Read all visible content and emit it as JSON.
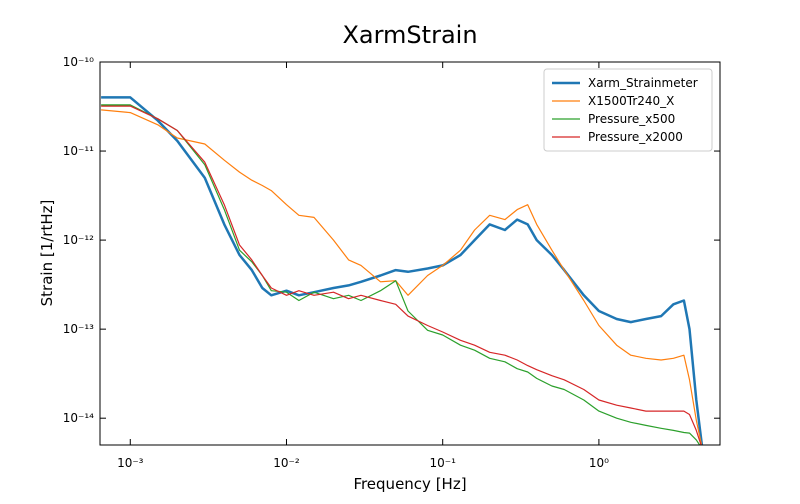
{
  "chart_data": {
    "type": "line",
    "title": "XarmStrain",
    "xlabel": "Frequency [Hz]",
    "ylabel": "Strain [1/rtHz]",
    "xscale": "log",
    "yscale": "log",
    "xlim": [
      0.00064,
      5.96
    ],
    "ylim": [
      5e-15,
      1e-10
    ],
    "xticks": [
      {
        "value": 0.001,
        "label": "10⁻³"
      },
      {
        "value": 0.01,
        "label": "10⁻²"
      },
      {
        "value": 0.1,
        "label": "10⁻¹"
      },
      {
        "value": 1,
        "label": "10⁰"
      }
    ],
    "yticks": [
      {
        "value": 1e-14,
        "label": "10⁻¹⁴"
      },
      {
        "value": 1e-13,
        "label": "10⁻¹³"
      },
      {
        "value": 1e-12,
        "label": "10⁻¹²"
      },
      {
        "value": 1e-11,
        "label": "10⁻¹¹"
      },
      {
        "value": 1e-10,
        "label": "10⁻¹⁰"
      }
    ],
    "legend": "upper right",
    "x": [
      0.00065,
      0.001,
      0.0015,
      0.002,
      0.003,
      0.004,
      0.005,
      0.006,
      0.007,
      0.008,
      0.01,
      0.012,
      0.015,
      0.02,
      0.025,
      0.03,
      0.04,
      0.05,
      0.06,
      0.08,
      0.1,
      0.13,
      0.16,
      0.2,
      0.25,
      0.3,
      0.35,
      0.4,
      0.5,
      0.6,
      0.8,
      1,
      1.3,
      1.6,
      2,
      2.5,
      3,
      3.5,
      3.8,
      4.2,
      4.6
    ],
    "series": [
      {
        "name": "Xarm_Strainmeter",
        "color": "#1f77b4",
        "width": 2.5,
        "values": [
          4e-11,
          4e-11,
          2.2e-11,
          1.3e-11,
          5e-12,
          1.5e-12,
          6.8e-13,
          4.6e-13,
          2.9e-13,
          2.4e-13,
          2.7e-13,
          2.4e-13,
          2.6e-13,
          2.9e-13,
          3.1e-13,
          3.4e-13,
          4e-13,
          4.6e-13,
          4.4e-13,
          4.8e-13,
          5.2e-13,
          6.8e-13,
          1e-12,
          1.5e-12,
          1.3e-12,
          1.7e-12,
          1.5e-12,
          1e-12,
          6.8e-13,
          4.6e-13,
          2.4e-13,
          1.6e-13,
          1.3e-13,
          1.2e-13,
          1.3e-13,
          1.4e-13,
          1.9e-13,
          2.1e-13,
          1e-13,
          1.6e-14,
          4.5e-15
        ]
      },
      {
        "name": "X1500Tr240_X",
        "color": "#ff7f0e",
        "width": 1.2,
        "values": [
          2.9e-11,
          2.7e-11,
          1.97e-11,
          1.4e-11,
          1.2e-11,
          7.9e-12,
          5.8e-12,
          4.7e-12,
          4.1e-12,
          3.6e-12,
          2.5e-12,
          1.9e-12,
          1.8e-12,
          1e-12,
          6e-13,
          5.2e-13,
          3.4e-13,
          3.5e-13,
          2.4e-13,
          4e-13,
          5.2e-13,
          7.7e-13,
          1.3e-12,
          1.9e-12,
          1.7e-12,
          2.2e-12,
          2.5e-12,
          1.5e-12,
          7.7e-13,
          4.6e-13,
          2.1e-13,
          1.1e-13,
          6.6e-14,
          5.1e-14,
          4.7e-14,
          4.5e-14,
          4.7e-14,
          5.1e-14,
          2.7e-14,
          9.5e-15,
          4.5e-15
        ]
      },
      {
        "name": "Pressure_x500",
        "color": "#2ca02c",
        "width": 1.2,
        "values": [
          3.3e-11,
          3.3e-11,
          2.3e-11,
          1.7e-11,
          7e-12,
          2.2e-12,
          7.7e-13,
          5.7e-13,
          4e-13,
          2.7e-13,
          2.6e-13,
          2.1e-13,
          2.6e-13,
          2.2e-13,
          2.4e-13,
          2.1e-13,
          2.7e-13,
          3.5e-13,
          1.6e-13,
          9.7e-14,
          8.6e-14,
          6.6e-14,
          5.8e-14,
          4.7e-14,
          4.3e-14,
          3.6e-14,
          3.3e-14,
          2.8e-14,
          2.3e-14,
          2.1e-14,
          1.6e-14,
          1.2e-14,
          1e-14,
          9e-15,
          8.3e-15,
          7.7e-15,
          7.3e-15,
          6.9e-15,
          6.8e-15,
          5.7e-15,
          4.5e-15
        ]
      },
      {
        "name": "Pressure_x2000",
        "color": "#d62728",
        "width": 1.2,
        "values": [
          3.2e-11,
          3.2e-11,
          2.3e-11,
          1.7e-11,
          7.5e-12,
          2.5e-12,
          8.8e-13,
          6e-13,
          4e-13,
          2.9e-13,
          2.4e-13,
          2.7e-13,
          2.4e-13,
          2.6e-13,
          2.2e-13,
          2.4e-13,
          2.1e-13,
          1.9e-13,
          1.4e-13,
          1.1e-13,
          9.3e-14,
          7.5e-14,
          6.6e-14,
          5.5e-14,
          5.1e-14,
          4.5e-14,
          3.9e-14,
          3.5e-14,
          3e-14,
          2.7e-14,
          2.1e-14,
          1.6e-14,
          1.4e-14,
          1.3e-14,
          1.2e-14,
          1.2e-14,
          1.2e-14,
          1.2e-14,
          1.1e-14,
          7.3e-15,
          4.5e-15
        ]
      }
    ]
  }
}
